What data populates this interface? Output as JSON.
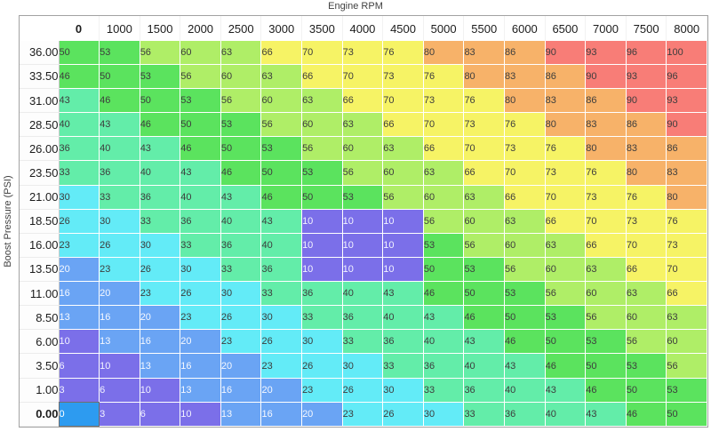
{
  "title": "Engine RPM",
  "y_axis_label": "Boost Pressure (PSI)",
  "table": {
    "columns": [
      "0",
      "1000",
      "1500",
      "2000",
      "2500",
      "3000",
      "3500",
      "4000",
      "4500",
      "5000",
      "5500",
      "6000",
      "6500",
      "7000",
      "7500",
      "8000"
    ],
    "rows": [
      {
        "psi": "36.00",
        "values": [
          50,
          53,
          56,
          60,
          63,
          66,
          70,
          73,
          76,
          80,
          83,
          86,
          90,
          93,
          96,
          100
        ]
      },
      {
        "psi": "33.50",
        "values": [
          46,
          50,
          53,
          56,
          60,
          63,
          66,
          70,
          73,
          76,
          80,
          83,
          86,
          90,
          93,
          96
        ]
      },
      {
        "psi": "31.00",
        "values": [
          43,
          46,
          50,
          53,
          56,
          60,
          63,
          66,
          70,
          73,
          76,
          80,
          83,
          86,
          90,
          93
        ]
      },
      {
        "psi": "28.50",
        "values": [
          40,
          43,
          46,
          50,
          53,
          56,
          60,
          63,
          66,
          70,
          73,
          76,
          80,
          83,
          86,
          90
        ]
      },
      {
        "psi": "26.00",
        "values": [
          36,
          40,
          43,
          46,
          50,
          53,
          56,
          60,
          63,
          66,
          70,
          73,
          76,
          80,
          83,
          86
        ]
      },
      {
        "psi": "23.50",
        "values": [
          33,
          36,
          40,
          43,
          46,
          50,
          53,
          56,
          60,
          63,
          66,
          70,
          73,
          76,
          80,
          83
        ]
      },
      {
        "psi": "21.00",
        "values": [
          30,
          33,
          36,
          40,
          43,
          46,
          50,
          53,
          56,
          60,
          63,
          66,
          70,
          73,
          76,
          80
        ]
      },
      {
        "psi": "18.50",
        "values": [
          26,
          30,
          33,
          36,
          40,
          43,
          10,
          10,
          10,
          56,
          60,
          63,
          66,
          70,
          73,
          76
        ]
      },
      {
        "psi": "16.00",
        "values": [
          23,
          26,
          30,
          33,
          36,
          40,
          10,
          10,
          10,
          53,
          56,
          60,
          63,
          66,
          70,
          73
        ]
      },
      {
        "psi": "13.50",
        "values": [
          20,
          23,
          26,
          30,
          33,
          36,
          10,
          10,
          10,
          50,
          53,
          56,
          60,
          63,
          66,
          70
        ]
      },
      {
        "psi": "11.00",
        "values": [
          16,
          20,
          23,
          26,
          30,
          33,
          36,
          40,
          43,
          46,
          50,
          53,
          56,
          60,
          63,
          66
        ]
      },
      {
        "psi": "8.50",
        "values": [
          13,
          16,
          20,
          23,
          26,
          30,
          33,
          36,
          40,
          43,
          46,
          50,
          53,
          56,
          60,
          63
        ]
      },
      {
        "psi": "6.00",
        "values": [
          10,
          13,
          16,
          20,
          23,
          26,
          30,
          33,
          36,
          40,
          43,
          46,
          50,
          53,
          56,
          60
        ]
      },
      {
        "psi": "3.50",
        "values": [
          6,
          10,
          13,
          16,
          20,
          23,
          26,
          30,
          33,
          36,
          40,
          43,
          46,
          50,
          53,
          56
        ]
      },
      {
        "psi": "1.00",
        "values": [
          3,
          6,
          10,
          13,
          16,
          20,
          23,
          26,
          30,
          33,
          36,
          40,
          43,
          46,
          50,
          53
        ]
      },
      {
        "psi": "0.00",
        "values": [
          0,
          3,
          6,
          10,
          13,
          16,
          20,
          23,
          26,
          30,
          33,
          36,
          40,
          43,
          46,
          50
        ]
      }
    ],
    "selected": {
      "row_index": 15,
      "col_index": 0,
      "value": 0,
      "bg": "#2d9bf0",
      "text": "#ffffff"
    },
    "color_bands": [
      {
        "max": 12,
        "bg": "#7b6fe9",
        "text": "#f2f2ff"
      },
      {
        "max": 22,
        "bg": "#6aa4f4",
        "text": "#f5f8ff"
      },
      {
        "max": 32,
        "bg": "#63ebf7",
        "text": "#3d3d3d"
      },
      {
        "max": 45,
        "bg": "#63eda9",
        "text": "#3d3d3d"
      },
      {
        "max": 55,
        "bg": "#5be35e",
        "text": "#3d3d3d"
      },
      {
        "max": 65,
        "bg": "#afee67",
        "text": "#3d3d3d"
      },
      {
        "max": 78,
        "bg": "#f6f365",
        "text": "#3d3d3d"
      },
      {
        "max": 88,
        "bg": "#f7b269",
        "text": "#3d3d3d"
      },
      {
        "max": 1000,
        "bg": "#f87d77",
        "text": "#3d3d3d"
      }
    ]
  }
}
